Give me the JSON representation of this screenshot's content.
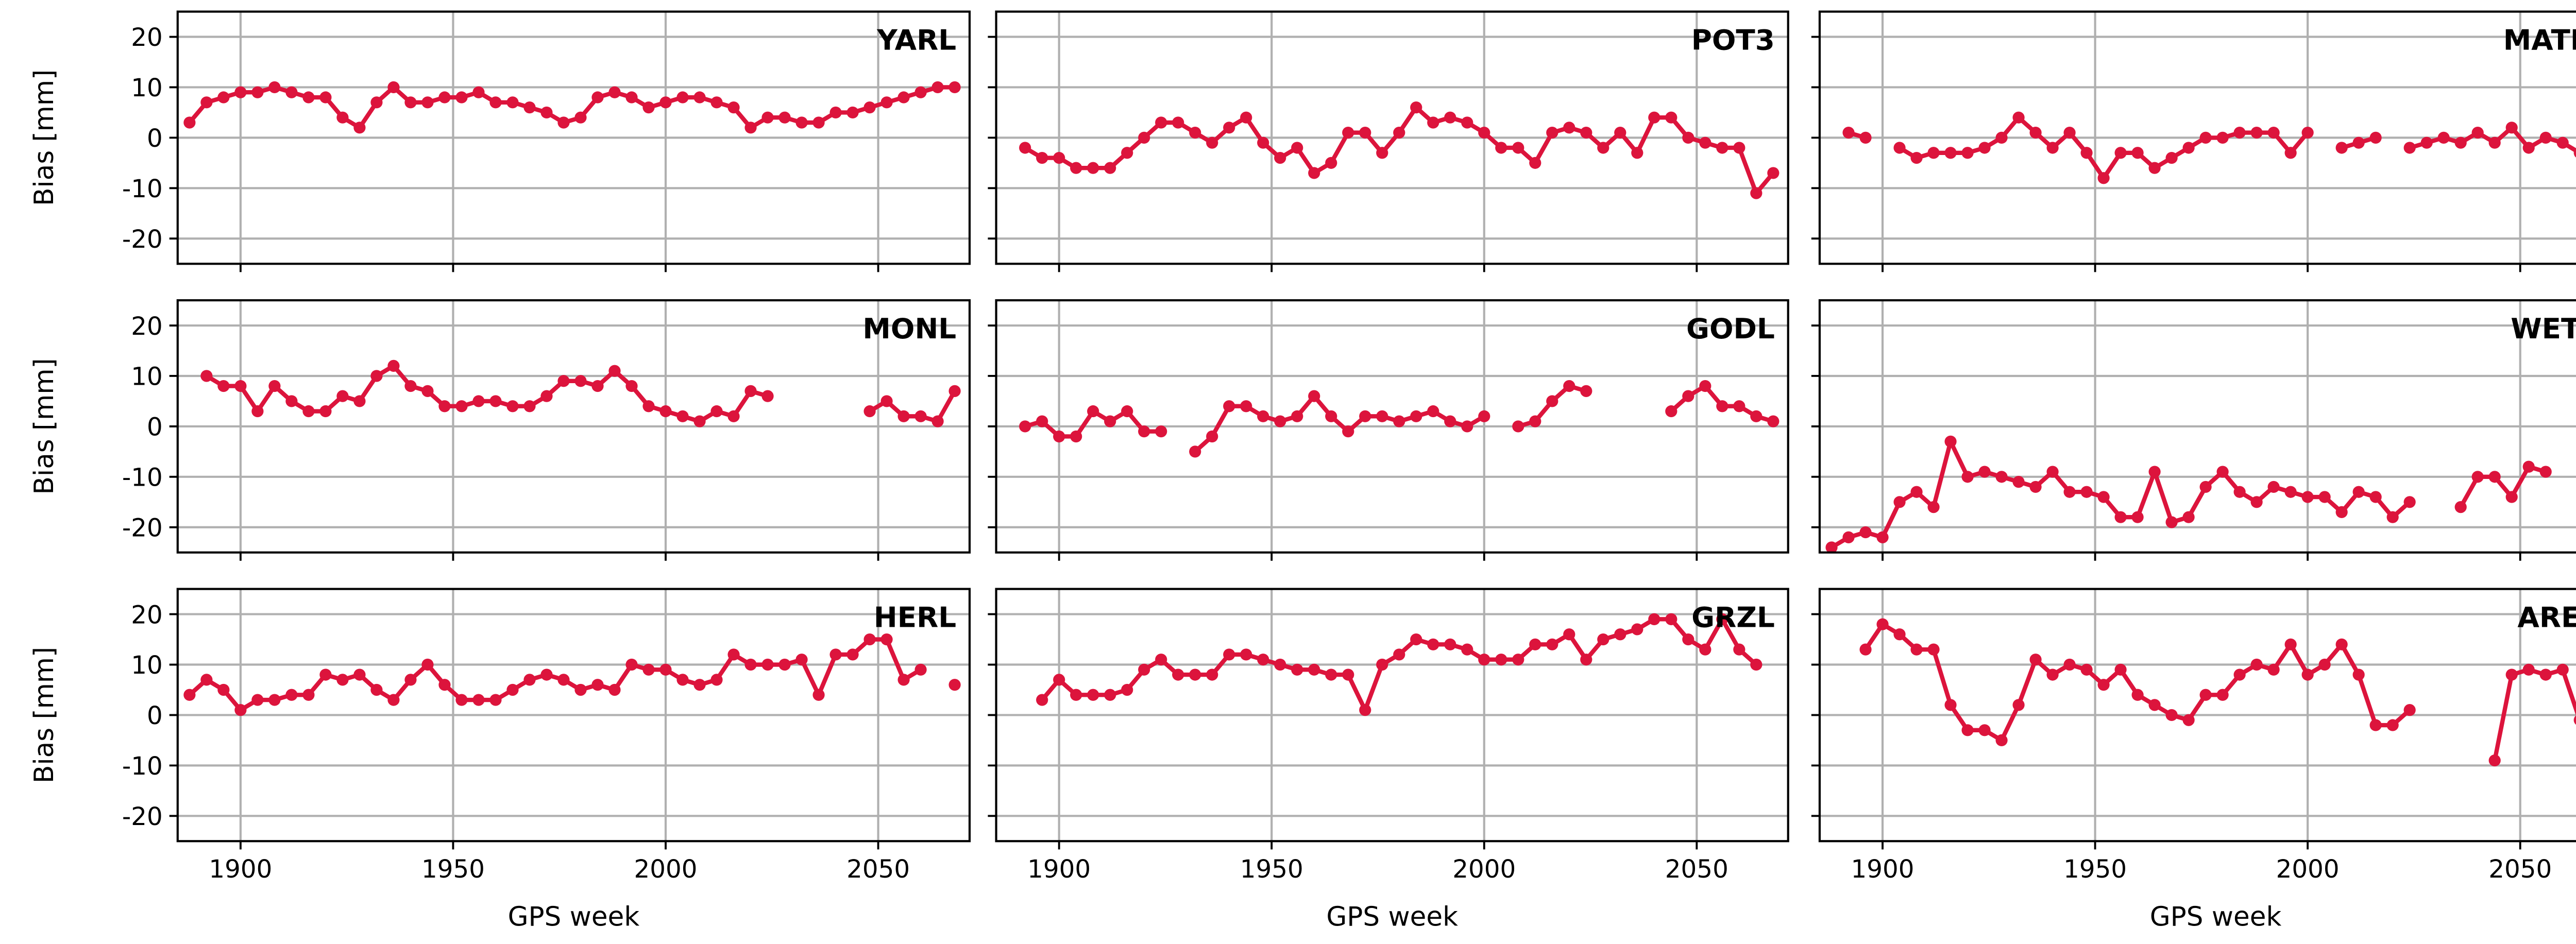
{
  "chart_data": [
    {
      "type": "line",
      "title": "YARL",
      "ylabel": "Bias [mm]",
      "color": "#dc143c",
      "xlim": [
        1885.2,
        2071.5
      ],
      "ylim": [
        -25,
        25
      ],
      "xticks": [
        1900,
        1950,
        2000,
        2050
      ],
      "yticks": [
        -20,
        -10,
        0,
        10,
        20
      ],
      "grid": true,
      "x": [
        1888,
        1892,
        1896,
        1900,
        1904,
        1908,
        1912,
        1916,
        1920,
        1924,
        1928,
        1932,
        1936,
        1940,
        1944,
        1948,
        1952,
        1956,
        1960,
        1964,
        1968,
        1972,
        1976,
        1980,
        1984,
        1988,
        1992,
        1996,
        2000,
        2004,
        2008,
        2012,
        2016,
        2020,
        2024,
        2028,
        2032,
        2036,
        2040,
        2044,
        2048,
        2052,
        2056,
        2060,
        2064,
        2068
      ],
      "values": [
        3,
        7,
        8,
        9,
        9,
        10,
        9,
        8,
        8,
        4,
        2,
        7,
        10,
        7,
        7,
        8,
        8,
        9,
        7,
        7,
        6,
        5,
        3,
        4,
        8,
        9,
        8,
        6,
        7,
        8,
        8,
        7,
        6,
        2,
        4,
        4,
        3,
        3,
        5,
        5,
        6,
        7,
        8,
        9,
        10,
        10
      ]
    },
    {
      "type": "line",
      "title": "POT3",
      "color": "#dc143c",
      "xlim": [
        1885.2,
        2071.5
      ],
      "ylim": [
        -25,
        25
      ],
      "xticks": [
        1900,
        1950,
        2000,
        2050
      ],
      "yticks": [
        -20,
        -10,
        0,
        10,
        20
      ],
      "grid": true,
      "x": [
        1888,
        1892,
        1896,
        1900,
        1904,
        1908,
        1912,
        1916,
        1920,
        1924,
        1928,
        1932,
        1936,
        1940,
        1944,
        1948,
        1952,
        1956,
        1960,
        1964,
        1968,
        1972,
        1976,
        1980,
        1984,
        1988,
        1992,
        1996,
        2000,
        2004,
        2008,
        2012,
        2016,
        2020,
        2024,
        2028,
        2032,
        2036,
        2040,
        2044,
        2048,
        2052,
        2056,
        2060,
        2064,
        2068
      ],
      "values": [
        null,
        -2,
        -4,
        -4,
        -6,
        -6,
        -6,
        -3,
        0,
        3,
        3,
        1,
        -1,
        2,
        4,
        -1,
        -4,
        -2,
        -7,
        -5,
        1,
        1,
        -3,
        1,
        6,
        3,
        4,
        3,
        1,
        -2,
        -2,
        -5,
        1,
        2,
        1,
        -2,
        1,
        -3,
        4,
        4,
        0,
        -1,
        -2,
        -2,
        -11,
        -7
      ]
    },
    {
      "type": "line",
      "title": "MATM",
      "color": "#dc143c",
      "xlim": [
        1885.2,
        2071.5
      ],
      "ylim": [
        -25,
        25
      ],
      "xticks": [
        1900,
        1950,
        2000,
        2050
      ],
      "yticks": [
        -20,
        -10,
        0,
        10,
        20
      ],
      "grid": true,
      "x": [
        1888,
        1892,
        1896,
        1900,
        1904,
        1908,
        1912,
        1916,
        1920,
        1924,
        1928,
        1932,
        1936,
        1940,
        1944,
        1948,
        1952,
        1956,
        1960,
        1964,
        1968,
        1972,
        1976,
        1980,
        1984,
        1988,
        1992,
        1996,
        2000,
        2004,
        2008,
        2012,
        2016,
        2020,
        2024,
        2028,
        2032,
        2036,
        2040,
        2044,
        2048,
        2052,
        2056,
        2060,
        2064,
        2068
      ],
      "values": [
        null,
        1,
        0,
        null,
        -2,
        -4,
        -3,
        -3,
        -3,
        -2,
        0,
        4,
        1,
        -2,
        1,
        -3,
        -8,
        -3,
        -3,
        -6,
        -4,
        -2,
        0,
        0,
        1,
        1,
        1,
        -3,
        1,
        null,
        -2,
        -1,
        0,
        null,
        -2,
        -1,
        0,
        -1,
        1,
        -1,
        2,
        -2,
        0,
        -1,
        -3,
        -2
      ]
    },
    {
      "type": "line",
      "title": "MONL",
      "ylabel": "Bias [mm]",
      "color": "#dc143c",
      "xlim": [
        1885.2,
        2071.5
      ],
      "ylim": [
        -25,
        25
      ],
      "xticks": [
        1900,
        1950,
        2000,
        2050
      ],
      "yticks": [
        -20,
        -10,
        0,
        10,
        20
      ],
      "grid": true,
      "x": [
        1888,
        1892,
        1896,
        1900,
        1904,
        1908,
        1912,
        1916,
        1920,
        1924,
        1928,
        1932,
        1936,
        1940,
        1944,
        1948,
        1952,
        1956,
        1960,
        1964,
        1968,
        1972,
        1976,
        1980,
        1984,
        1988,
        1992,
        1996,
        2000,
        2004,
        2008,
        2012,
        2016,
        2020,
        2024,
        2028,
        2032,
        2036,
        2040,
        2044,
        2048,
        2052,
        2056,
        2060,
        2064,
        2068
      ],
      "values": [
        null,
        10,
        8,
        8,
        3,
        8,
        5,
        3,
        3,
        6,
        5,
        10,
        12,
        8,
        7,
        4,
        4,
        5,
        5,
        4,
        4,
        6,
        9,
        9,
        8,
        11,
        8,
        4,
        3,
        2,
        1,
        3,
        2,
        7,
        6,
        null,
        null,
        null,
        null,
        null,
        3,
        5,
        2,
        2,
        1,
        7
      ]
    },
    {
      "type": "line",
      "title": "GODL",
      "color": "#dc143c",
      "xlim": [
        1885.2,
        2071.5
      ],
      "ylim": [
        -25,
        25
      ],
      "xticks": [
        1900,
        1950,
        2000,
        2050
      ],
      "yticks": [
        -20,
        -10,
        0,
        10,
        20
      ],
      "grid": true,
      "x": [
        1888,
        1892,
        1896,
        1900,
        1904,
        1908,
        1912,
        1916,
        1920,
        1924,
        1928,
        1932,
        1936,
        1940,
        1944,
        1948,
        1952,
        1956,
        1960,
        1964,
        1968,
        1972,
        1976,
        1980,
        1984,
        1988,
        1992,
        1996,
        2000,
        2004,
        2008,
        2012,
        2016,
        2020,
        2024,
        2028,
        2032,
        2036,
        2040,
        2044,
        2048,
        2052,
        2056,
        2060,
        2064,
        2068
      ],
      "values": [
        null,
        0,
        1,
        -2,
        -2,
        3,
        1,
        3,
        -1,
        -1,
        null,
        -5,
        -2,
        4,
        4,
        2,
        1,
        2,
        6,
        2,
        -1,
        2,
        2,
        1,
        2,
        3,
        1,
        0,
        2,
        null,
        0,
        1,
        5,
        8,
        7,
        null,
        null,
        null,
        null,
        3,
        6,
        8,
        4,
        4,
        2,
        1
      ]
    },
    {
      "type": "line",
      "title": "WETL",
      "color": "#dc143c",
      "xlim": [
        1885.2,
        2071.5
      ],
      "ylim": [
        -25,
        25
      ],
      "xticks": [
        1900,
        1950,
        2000,
        2050
      ],
      "yticks": [
        -20,
        -10,
        0,
        10,
        20
      ],
      "grid": true,
      "x": [
        1888,
        1892,
        1896,
        1900,
        1904,
        1908,
        1912,
        1916,
        1920,
        1924,
        1928,
        1932,
        1936,
        1940,
        1944,
        1948,
        1952,
        1956,
        1960,
        1964,
        1968,
        1972,
        1976,
        1980,
        1984,
        1988,
        1992,
        1996,
        2000,
        2004,
        2008,
        2012,
        2016,
        2020,
        2024,
        2028,
        2032,
        2036,
        2040,
        2044,
        2048,
        2052,
        2056,
        2060,
        2064,
        2068
      ],
      "values": [
        -24,
        -22,
        -21,
        -22,
        -15,
        -13,
        -16,
        -3,
        -10,
        -9,
        -10,
        -11,
        -12,
        -9,
        -13,
        -13,
        -14,
        -18,
        -18,
        -9,
        -19,
        -18,
        -12,
        -9,
        -13,
        -15,
        -12,
        -13,
        -14,
        -14,
        -17,
        -13,
        -14,
        -18,
        -15,
        null,
        null,
        -16,
        -10,
        -10,
        -14,
        -8,
        -9,
        null,
        null,
        null
      ]
    },
    {
      "type": "line",
      "title": "HERL",
      "ylabel": "Bias [mm]",
      "xlabel": "GPS week",
      "color": "#dc143c",
      "xlim": [
        1885.2,
        2071.5
      ],
      "ylim": [
        -25,
        25
      ],
      "xticks": [
        1900,
        1950,
        2000,
        2050
      ],
      "yticks": [
        -20,
        -10,
        0,
        10,
        20
      ],
      "grid": true,
      "x": [
        1888,
        1892,
        1896,
        1900,
        1904,
        1908,
        1912,
        1916,
        1920,
        1924,
        1928,
        1932,
        1936,
        1940,
        1944,
        1948,
        1952,
        1956,
        1960,
        1964,
        1968,
        1972,
        1976,
        1980,
        1984,
        1988,
        1992,
        1996,
        2000,
        2004,
        2008,
        2012,
        2016,
        2020,
        2024,
        2028,
        2032,
        2036,
        2040,
        2044,
        2048,
        2052,
        2056,
        2060,
        2064,
        2068
      ],
      "values": [
        4,
        7,
        5,
        1,
        3,
        3,
        4,
        4,
        8,
        7,
        8,
        5,
        3,
        7,
        10,
        6,
        3,
        3,
        3,
        5,
        7,
        8,
        7,
        5,
        6,
        5,
        10,
        9,
        9,
        7,
        6,
        7,
        12,
        10,
        10,
        10,
        11,
        4,
        12,
        12,
        15,
        15,
        7,
        9,
        null,
        6
      ]
    },
    {
      "type": "line",
      "title": "GRZL",
      "xlabel": "GPS week",
      "color": "#dc143c",
      "xlim": [
        1885.2,
        2071.5
      ],
      "ylim": [
        -25,
        25
      ],
      "xticks": [
        1900,
        1950,
        2000,
        2050
      ],
      "yticks": [
        -20,
        -10,
        0,
        10,
        20
      ],
      "grid": true,
      "x": [
        1888,
        1892,
        1896,
        1900,
        1904,
        1908,
        1912,
        1916,
        1920,
        1924,
        1928,
        1932,
        1936,
        1940,
        1944,
        1948,
        1952,
        1956,
        1960,
        1964,
        1968,
        1972,
        1976,
        1980,
        1984,
        1988,
        1992,
        1996,
        2000,
        2004,
        2008,
        2012,
        2016,
        2020,
        2024,
        2028,
        2032,
        2036,
        2040,
        2044,
        2048,
        2052,
        2056,
        2060,
        2064,
        2068
      ],
      "values": [
        null,
        null,
        3,
        7,
        4,
        4,
        4,
        5,
        9,
        11,
        8,
        8,
        8,
        12,
        12,
        11,
        10,
        9,
        9,
        8,
        8,
        1,
        10,
        12,
        15,
        14,
        14,
        13,
        11,
        11,
        11,
        14,
        14,
        16,
        11,
        15,
        16,
        17,
        19,
        19,
        15,
        13,
        19,
        13,
        10,
        null
      ]
    },
    {
      "type": "line",
      "title": "AREL",
      "xlabel": "GPS week",
      "color": "#dc143c",
      "xlim": [
        1885.2,
        2071.5
      ],
      "ylim": [
        -25,
        25
      ],
      "xticks": [
        1900,
        1950,
        2000,
        2050
      ],
      "yticks": [
        -20,
        -10,
        0,
        10,
        20
      ],
      "grid": true,
      "x": [
        1888,
        1892,
        1896,
        1900,
        1904,
        1908,
        1912,
        1916,
        1920,
        1924,
        1928,
        1932,
        1936,
        1940,
        1944,
        1948,
        1952,
        1956,
        1960,
        1964,
        1968,
        1972,
        1976,
        1980,
        1984,
        1988,
        1992,
        1996,
        2000,
        2004,
        2008,
        2012,
        2016,
        2020,
        2024,
        2028,
        2032,
        2036,
        2040,
        2044,
        2048,
        2052,
        2056,
        2060,
        2064,
        2068
      ],
      "values": [
        null,
        null,
        13,
        18,
        16,
        13,
        13,
        2,
        -3,
        -3,
        -5,
        2,
        11,
        8,
        10,
        9,
        6,
        9,
        4,
        2,
        0,
        -1,
        4,
        4,
        8,
        10,
        9,
        14,
        8,
        10,
        14,
        8,
        -2,
        -2,
        1,
        null,
        null,
        null,
        null,
        -9,
        8,
        9,
        8,
        9,
        -1,
        null
      ]
    }
  ]
}
